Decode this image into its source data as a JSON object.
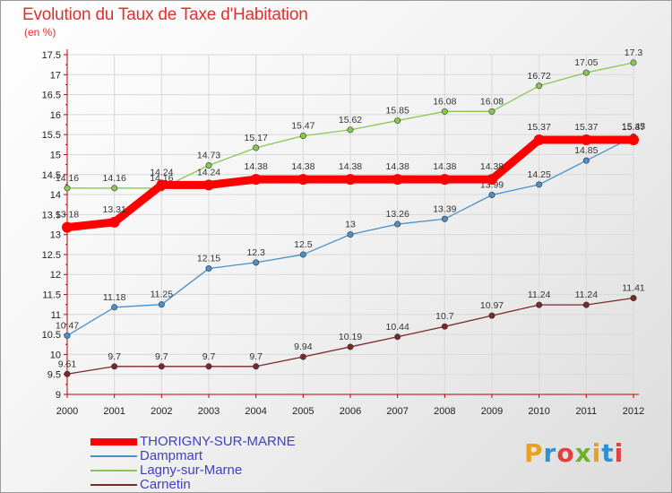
{
  "chart_data": {
    "type": "line",
    "title": "Evolution du Taux de Taxe d'Habitation",
    "subtitle": "(en %)",
    "x": [
      "2000",
      "2001",
      "2002",
      "2003",
      "2004",
      "2005",
      "2006",
      "2007",
      "2008",
      "2009",
      "2010",
      "2011",
      "2012"
    ],
    "ylim": [
      9,
      17.5
    ],
    "yticks": [
      "9",
      "9.5",
      "10",
      "10.5",
      "11",
      "11.5",
      "12",
      "12.5",
      "13",
      "13.5",
      "14",
      "14.5",
      "15",
      "15.5",
      "16",
      "16.5",
      "17",
      "17.5"
    ],
    "grid": true,
    "legend_position": "bottom-left",
    "series": [
      {
        "name": "THORIGNY-SUR-MARNE",
        "color": "#ff0000",
        "values": [
          13.18,
          13.31,
          14.24,
          14.24,
          14.38,
          14.38,
          14.38,
          14.38,
          14.38,
          14.38,
          15.37,
          15.37,
          15.37
        ],
        "labels": [
          "13.18",
          "13.31",
          "14.24",
          "14.24",
          "14.38",
          "14.38",
          "14.38",
          "14.38",
          "14.38",
          "14.38",
          "15.37",
          "15.37",
          "15.37"
        ]
      },
      {
        "name": "Dampmart",
        "color": "#4a90c8",
        "values": [
          10.47,
          11.18,
          11.25,
          12.15,
          12.3,
          12.5,
          13,
          13.26,
          13.39,
          13.99,
          14.25,
          14.85,
          15.45
        ],
        "labels": [
          "10.47",
          "11.18",
          "11.25",
          "12.15",
          "12.3",
          "12.5",
          "13",
          "13.26",
          "13.39",
          "13.99",
          "14.25",
          "14.85",
          "15.45"
        ]
      },
      {
        "name": "Lagny-sur-Marne",
        "color": "#88c850",
        "values": [
          14.16,
          14.16,
          14.16,
          14.73,
          15.17,
          15.47,
          15.62,
          15.85,
          16.08,
          16.08,
          16.72,
          17.05,
          17.3
        ],
        "labels": [
          "14.16",
          "14.16",
          "14.16",
          "14.73",
          "15.17",
          "15.47",
          "15.62",
          "15.85",
          "16.08",
          "16.08",
          "16.72",
          "17.05",
          "17.3"
        ]
      },
      {
        "name": "Carnetin",
        "color": "#7a2828",
        "values": [
          9.51,
          9.7,
          9.7,
          9.7,
          9.7,
          9.94,
          10.19,
          10.44,
          10.7,
          10.97,
          11.24,
          11.24,
          11.41
        ],
        "labels": [
          "9.51",
          "9.7",
          "9.7",
          "9.7",
          "9.7",
          "9.94",
          "10.19",
          "10.44",
          "10.7",
          "10.97",
          "11.24",
          "11.24",
          "11.41"
        ]
      }
    ]
  },
  "logo": {
    "text": "Proxiti",
    "letters": [
      "P",
      "r",
      "o",
      "x",
      "i",
      "t",
      "i"
    ],
    "colors": [
      "#e8a020",
      "#3090d0",
      "#e04040",
      "#70b030",
      "#e8a020",
      "#3090d0",
      "#e04040"
    ]
  }
}
